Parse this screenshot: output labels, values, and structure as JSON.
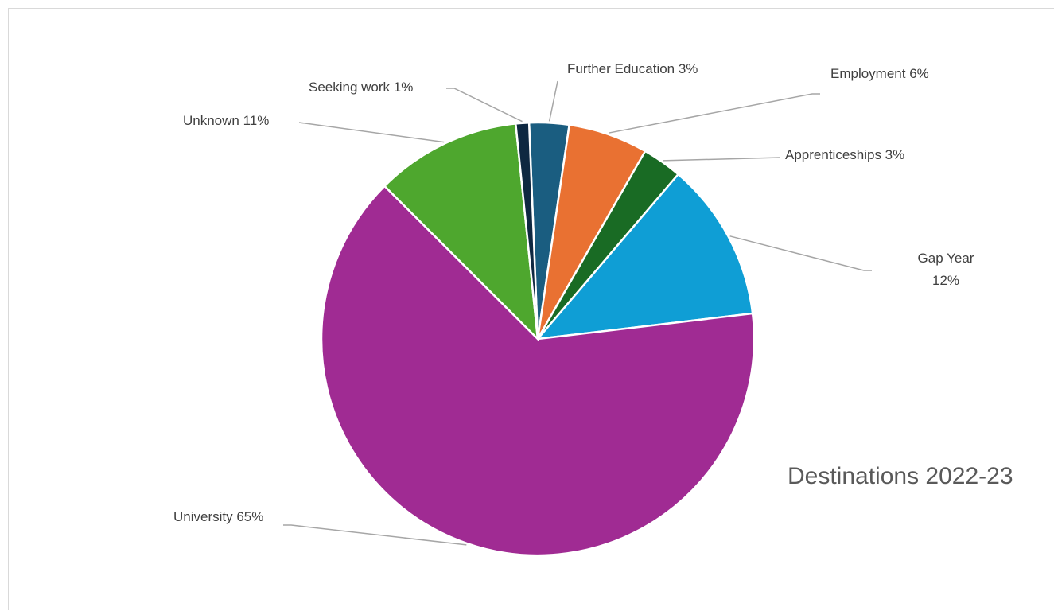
{
  "chart_data": {
    "type": "pie",
    "title": "Destinations 2022-23",
    "slices": [
      {
        "name": "Further Education",
        "value": 3,
        "label": "Further Education 3%",
        "color": "#1a5d80"
      },
      {
        "name": "Employment",
        "value": 6,
        "label": "Employment 6%",
        "color": "#e97132"
      },
      {
        "name": "Apprenticeships",
        "value": 3,
        "label": "Apprenticeships 3%",
        "color": "#196b24"
      },
      {
        "name": "Gap Year",
        "value": 12,
        "label_lines": [
          "Gap Year",
          "12%"
        ],
        "color": "#0f9ed5"
      },
      {
        "name": "University",
        "value": 65,
        "label": "University 65%",
        "color": "#a02b93"
      },
      {
        "name": "Unknown",
        "value": 11,
        "label": "Unknown 11%",
        "color": "#4ea72e"
      },
      {
        "name": "Seeking work",
        "value": 1,
        "label": "Seeking work 1%",
        "color": "#0e2841"
      }
    ],
    "legend": "none",
    "data_labels": "outside-with-leader-lines"
  }
}
